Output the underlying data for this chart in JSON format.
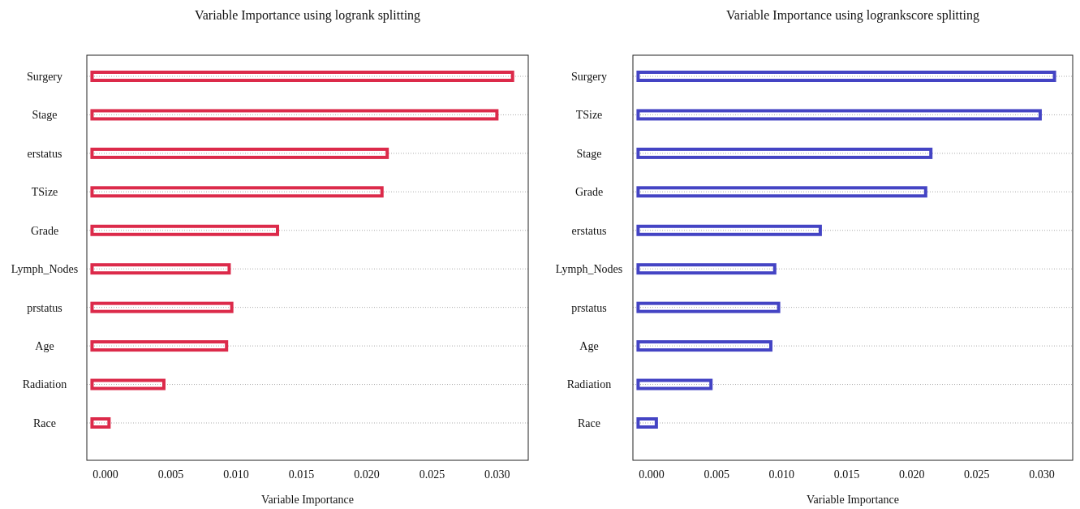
{
  "chart_data": [
    {
      "type": "bar",
      "orientation": "horizontal",
      "title": "Variable Importance using logrank splitting",
      "xlabel": "Variable Importance",
      "categories": [
        "Surgery",
        "Stage",
        "erstatus",
        "TSize",
        "Grade",
        "Lymph_Nodes",
        "prstatus",
        "Age",
        "Radiation",
        "Race"
      ],
      "base": [
        -0.001,
        -0.001,
        -0.001,
        -0.001,
        -0.001,
        -0.001,
        -0.001,
        -0.001,
        -0.001,
        -0.001
      ],
      "values": [
        0.0322,
        0.031,
        0.0226,
        0.0222,
        0.0142,
        0.0105,
        0.0107,
        0.0103,
        0.0055,
        0.0013
      ],
      "color": "#dc2a4a",
      "xlim": [
        -0.0014,
        0.0324
      ],
      "xticks": [
        {
          "value": 0,
          "label": "0.000"
        },
        {
          "value": 0.005,
          "label": "0.005"
        },
        {
          "value": 0.01,
          "label": "0.010"
        },
        {
          "value": 0.015,
          "label": "0.015"
        },
        {
          "value": 0.02,
          "label": "0.020"
        },
        {
          "value": 0.025,
          "label": "0.025"
        },
        {
          "value": 0.03,
          "label": "0.030"
        }
      ],
      "grid": "y"
    },
    {
      "type": "bar",
      "orientation": "horizontal",
      "title": "Variable Importance using logrankscore splitting",
      "xlabel": "Variable Importance",
      "categories": [
        "Surgery",
        "TSize",
        "Stage",
        "Grade",
        "erstatus",
        "Lymph_Nodes",
        "prstatus",
        "Age",
        "Radiation",
        "Race"
      ],
      "base": [
        -0.001,
        -0.001,
        -0.001,
        -0.001,
        -0.001,
        -0.001,
        -0.001,
        -0.001,
        -0.001,
        -0.001
      ],
      "values": [
        0.032,
        0.0309,
        0.0225,
        0.0221,
        0.014,
        0.0105,
        0.0108,
        0.0102,
        0.0056,
        0.0014
      ],
      "color": "#4444c4",
      "xlim": [
        -0.0014,
        0.0324
      ],
      "xticks": [
        {
          "value": 0,
          "label": "0.000"
        },
        {
          "value": 0.005,
          "label": "0.005"
        },
        {
          "value": 0.01,
          "label": "0.010"
        },
        {
          "value": 0.015,
          "label": "0.015"
        },
        {
          "value": 0.02,
          "label": "0.020"
        },
        {
          "value": 0.025,
          "label": "0.025"
        },
        {
          "value": 0.03,
          "label": "0.030"
        }
      ],
      "grid": "y"
    }
  ]
}
